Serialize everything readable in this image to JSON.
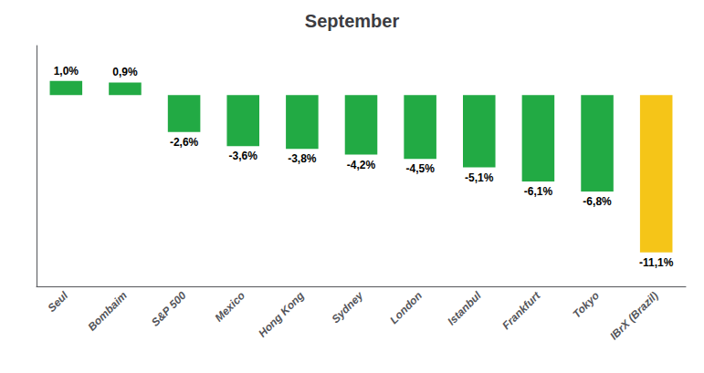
{
  "chart_data": {
    "type": "bar",
    "title": "September",
    "categories": [
      "Seul",
      "Bombaim",
      "S&P 500",
      "Mexico",
      "Hong Kong",
      "Sydney",
      "London",
      "Istanbul",
      "Frankfurt",
      "Tokyo",
      "IBrX (Brazil)"
    ],
    "values": [
      1.0,
      0.9,
      -2.6,
      -3.6,
      -3.8,
      -4.2,
      -4.5,
      -5.1,
      -6.1,
      -6.8,
      -11.1
    ],
    "value_labels": [
      "1,0%",
      "0,9%",
      "-2,6%",
      "-3,6%",
      "-3,8%",
      "-4,2%",
      "-4,5%",
      "-5,1%",
      "-6,1%",
      "-6,8%",
      "-11,1%"
    ],
    "colors": [
      "#22AA44",
      "#22AA44",
      "#22AA44",
      "#22AA44",
      "#22AA44",
      "#22AA44",
      "#22AA44",
      "#22AA44",
      "#22AA44",
      "#22AA44",
      "#F5C518"
    ],
    "ylim": [
      -13.5,
      3.5
    ],
    "grid": false,
    "data_labels": true,
    "tick_labels": "x"
  }
}
